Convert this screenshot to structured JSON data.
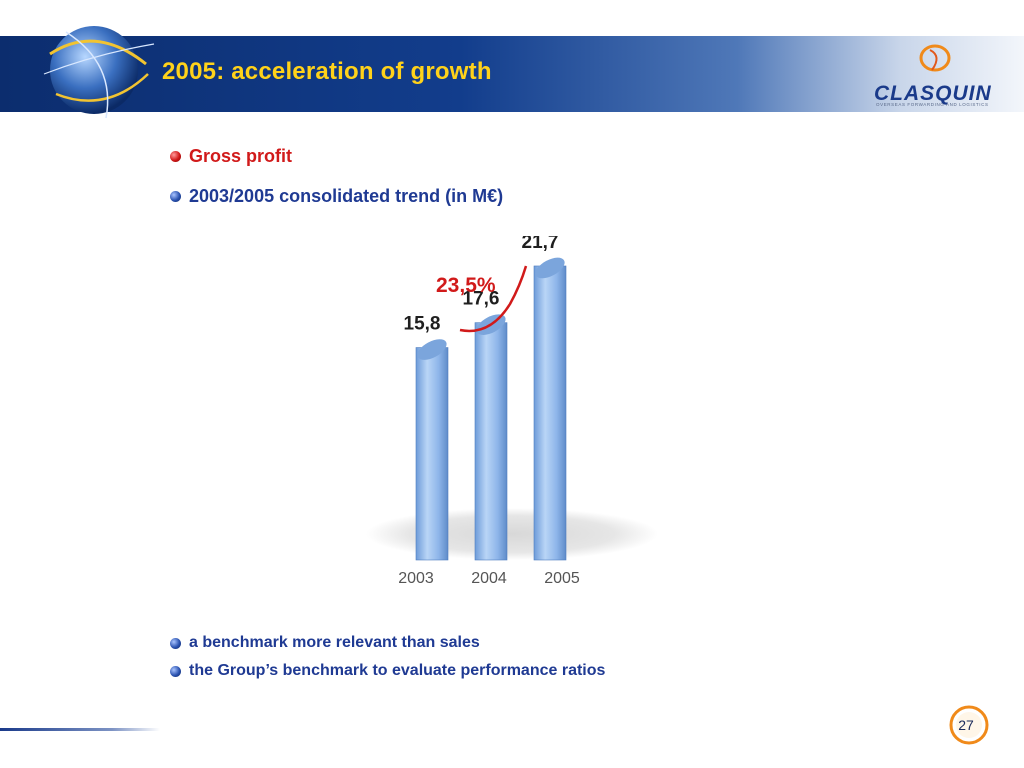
{
  "slide": {
    "title": "2005: acceleration of growth",
    "logo_text": "CLASQUIN",
    "logo_tagline": "OVERSEAS FORWARDING AND LOGISTICS",
    "page_number": "27"
  },
  "bullets": {
    "gross_profit": "Gross profit",
    "trend": "2003/2005 consolidated trend (in M€)",
    "benchmark_relevant": "a benchmark more relevant than sales",
    "benchmark_group": "the Group’s benchmark to evaluate performance ratios"
  },
  "colors": {
    "title": "#ffd21a",
    "accent_red": "#d11a1a",
    "text_blue": "#1f3a93",
    "bar_fill": "#8fb6ea"
  },
  "icons": [
    "globe-icon",
    "clasquin-logo-icon",
    "bullet-dot-icon",
    "page-badge-icon"
  ],
  "chart_data": {
    "type": "bar",
    "categories": [
      "2003",
      "2004",
      "2005"
    ],
    "values": [
      15.8,
      17.6,
      21.7
    ],
    "value_labels": [
      "15,8",
      "17,6",
      "21,7"
    ],
    "annotation": "23,5%",
    "title": "",
    "xlabel": "",
    "ylabel": "",
    "ylim": [
      0,
      23
    ],
    "grid": false,
    "legend": "none"
  }
}
